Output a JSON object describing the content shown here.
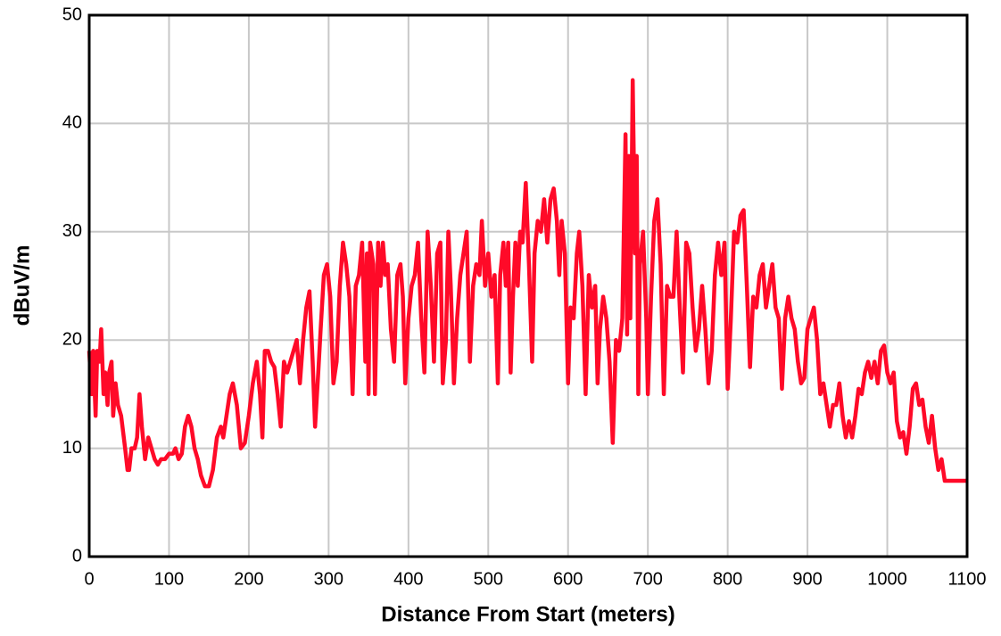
{
  "chart_data": {
    "type": "line",
    "xlabel": "Distance From Start (meters)",
    "ylabel": "dBuV/m",
    "color": "#ff0a28",
    "grid": true,
    "xlim": [
      0,
      1100
    ],
    "xticks": [
      0,
      100,
      200,
      300,
      400,
      500,
      600,
      700,
      800,
      900,
      1000,
      1100
    ],
    "ylim": [
      0,
      50
    ],
    "yticks": [
      0,
      10,
      20,
      30,
      40,
      50
    ],
    "x": [
      0,
      3,
      5,
      8,
      10,
      13,
      15,
      18,
      20,
      23,
      25,
      28,
      30,
      33,
      36,
      40,
      45,
      48,
      50,
      53,
      57,
      60,
      63,
      66,
      70,
      74,
      78,
      82,
      86,
      90,
      95,
      100,
      105,
      108,
      112,
      116,
      120,
      124,
      128,
      132,
      136,
      140,
      145,
      150,
      155,
      160,
      165,
      168,
      172,
      176,
      180,
      185,
      190,
      195,
      200,
      205,
      210,
      214,
      217,
      220,
      224,
      228,
      232,
      236,
      240,
      244,
      248,
      252,
      256,
      260,
      264,
      268,
      272,
      276,
      280,
      283,
      287,
      290,
      294,
      298,
      302,
      306,
      310,
      314,
      318,
      322,
      326,
      330,
      334,
      338,
      342,
      346,
      348,
      350,
      352,
      356,
      358,
      362,
      365,
      368,
      371,
      374,
      378,
      382,
      386,
      390,
      393,
      396,
      400,
      404,
      408,
      412,
      416,
      420,
      424,
      428,
      432,
      436,
      440,
      443,
      447,
      450,
      453,
      457,
      461,
      465,
      469,
      473,
      477,
      481,
      485,
      489,
      492,
      496,
      500,
      504,
      508,
      512,
      515,
      519,
      522,
      525,
      528,
      531,
      534,
      537,
      540,
      543,
      547,
      551,
      555,
      558,
      562,
      566,
      570,
      574,
      578,
      582,
      586,
      589,
      592,
      596,
      600,
      603,
      607,
      611,
      614,
      618,
      622,
      626,
      630,
      634,
      637,
      640,
      644,
      648,
      652,
      656,
      660,
      664,
      668,
      672,
      674,
      676,
      678,
      681,
      684,
      686,
      688,
      690,
      694,
      698,
      700,
      704,
      708,
      712,
      716,
      720,
      724,
      728,
      732,
      736,
      740,
      744,
      748,
      752,
      756,
      760,
      764,
      768,
      772,
      776,
      780,
      784,
      788,
      792,
      796,
      800,
      804,
      808,
      812,
      816,
      820,
      824,
      828,
      832,
      836,
      840,
      844,
      848,
      852,
      856,
      860,
      864,
      868,
      872,
      876,
      880,
      884,
      888,
      892,
      896,
      900,
      904,
      908,
      912,
      916,
      920,
      924,
      928,
      932,
      936,
      940,
      944,
      948,
      952,
      956,
      960,
      964,
      968,
      972,
      976,
      980,
      984,
      988,
      992,
      996,
      1000,
      1004,
      1008,
      1012,
      1016,
      1020,
      1024,
      1028,
      1032,
      1036,
      1040,
      1044,
      1048,
      1052,
      1056,
      1060,
      1064,
      1068,
      1072,
      1100
    ],
    "values": [
      19,
      15,
      19,
      13,
      19,
      18,
      21,
      15,
      17,
      14,
      17,
      18,
      13,
      16,
      14,
      13,
      10,
      8,
      8,
      10,
      10,
      11,
      15,
      12,
      9,
      11,
      10,
      9,
      8.5,
      9,
      9,
      9.5,
      9.5,
      10,
      9,
      9.5,
      12,
      13,
      12,
      10,
      9,
      7.5,
      6.5,
      6.5,
      8,
      11,
      12,
      11,
      13,
      15,
      16,
      14,
      10,
      10.5,
      13,
      16,
      18,
      15,
      11,
      19,
      19,
      18,
      17.5,
      15,
      12,
      18,
      17,
      18,
      19,
      20,
      16,
      20,
      23,
      24.5,
      18,
      12,
      17,
      21,
      26,
      27,
      24,
      16,
      18,
      25,
      29,
      27,
      24,
      15,
      25,
      26,
      29,
      18,
      28,
      15,
      29,
      27,
      15,
      29,
      25,
      29,
      26,
      27,
      21,
      18,
      26,
      27,
      24,
      16,
      22,
      25,
      26,
      29,
      22,
      17,
      30,
      25,
      18,
      28,
      29,
      16,
      20,
      30,
      25,
      16,
      22,
      26,
      28,
      30,
      18,
      25,
      27,
      26,
      31,
      25,
      28,
      24,
      26,
      16,
      26,
      29,
      25,
      29,
      17,
      24,
      29,
      25,
      30,
      29,
      34.5,
      27,
      18,
      28,
      31,
      30,
      33,
      29,
      33,
      34,
      31,
      26,
      31,
      28,
      16,
      23,
      22,
      28,
      30,
      25,
      15,
      26,
      23,
      25,
      16,
      21,
      24,
      22,
      18,
      10.5,
      20,
      19,
      22,
      39,
      20.5,
      37,
      22,
      44,
      28,
      37,
      15,
      27,
      30,
      22,
      15,
      24,
      31,
      33,
      27,
      15,
      25,
      24,
      24,
      30,
      23,
      17,
      29,
      28,
      23,
      19,
      21,
      25,
      21,
      16,
      19,
      26,
      29,
      26,
      29,
      15.5,
      22,
      30,
      29,
      31.5,
      32,
      25,
      17.5,
      24,
      23,
      26,
      27,
      23,
      25,
      27,
      23,
      22,
      15.5,
      22,
      24,
      22,
      21,
      18,
      16,
      16.5,
      21,
      22,
      23,
      20,
      15,
      16,
      14,
      12,
      14,
      14,
      16,
      13,
      11,
      12.5,
      11,
      13,
      15.5,
      15,
      17,
      18,
      16.5,
      18,
      16,
      19,
      19.5,
      17,
      16,
      17,
      12.5,
      11,
      11.5,
      9.5,
      12,
      15.5,
      16,
      14,
      14.5,
      12,
      10.5,
      13,
      10,
      8,
      9,
      7,
      7
    ]
  }
}
